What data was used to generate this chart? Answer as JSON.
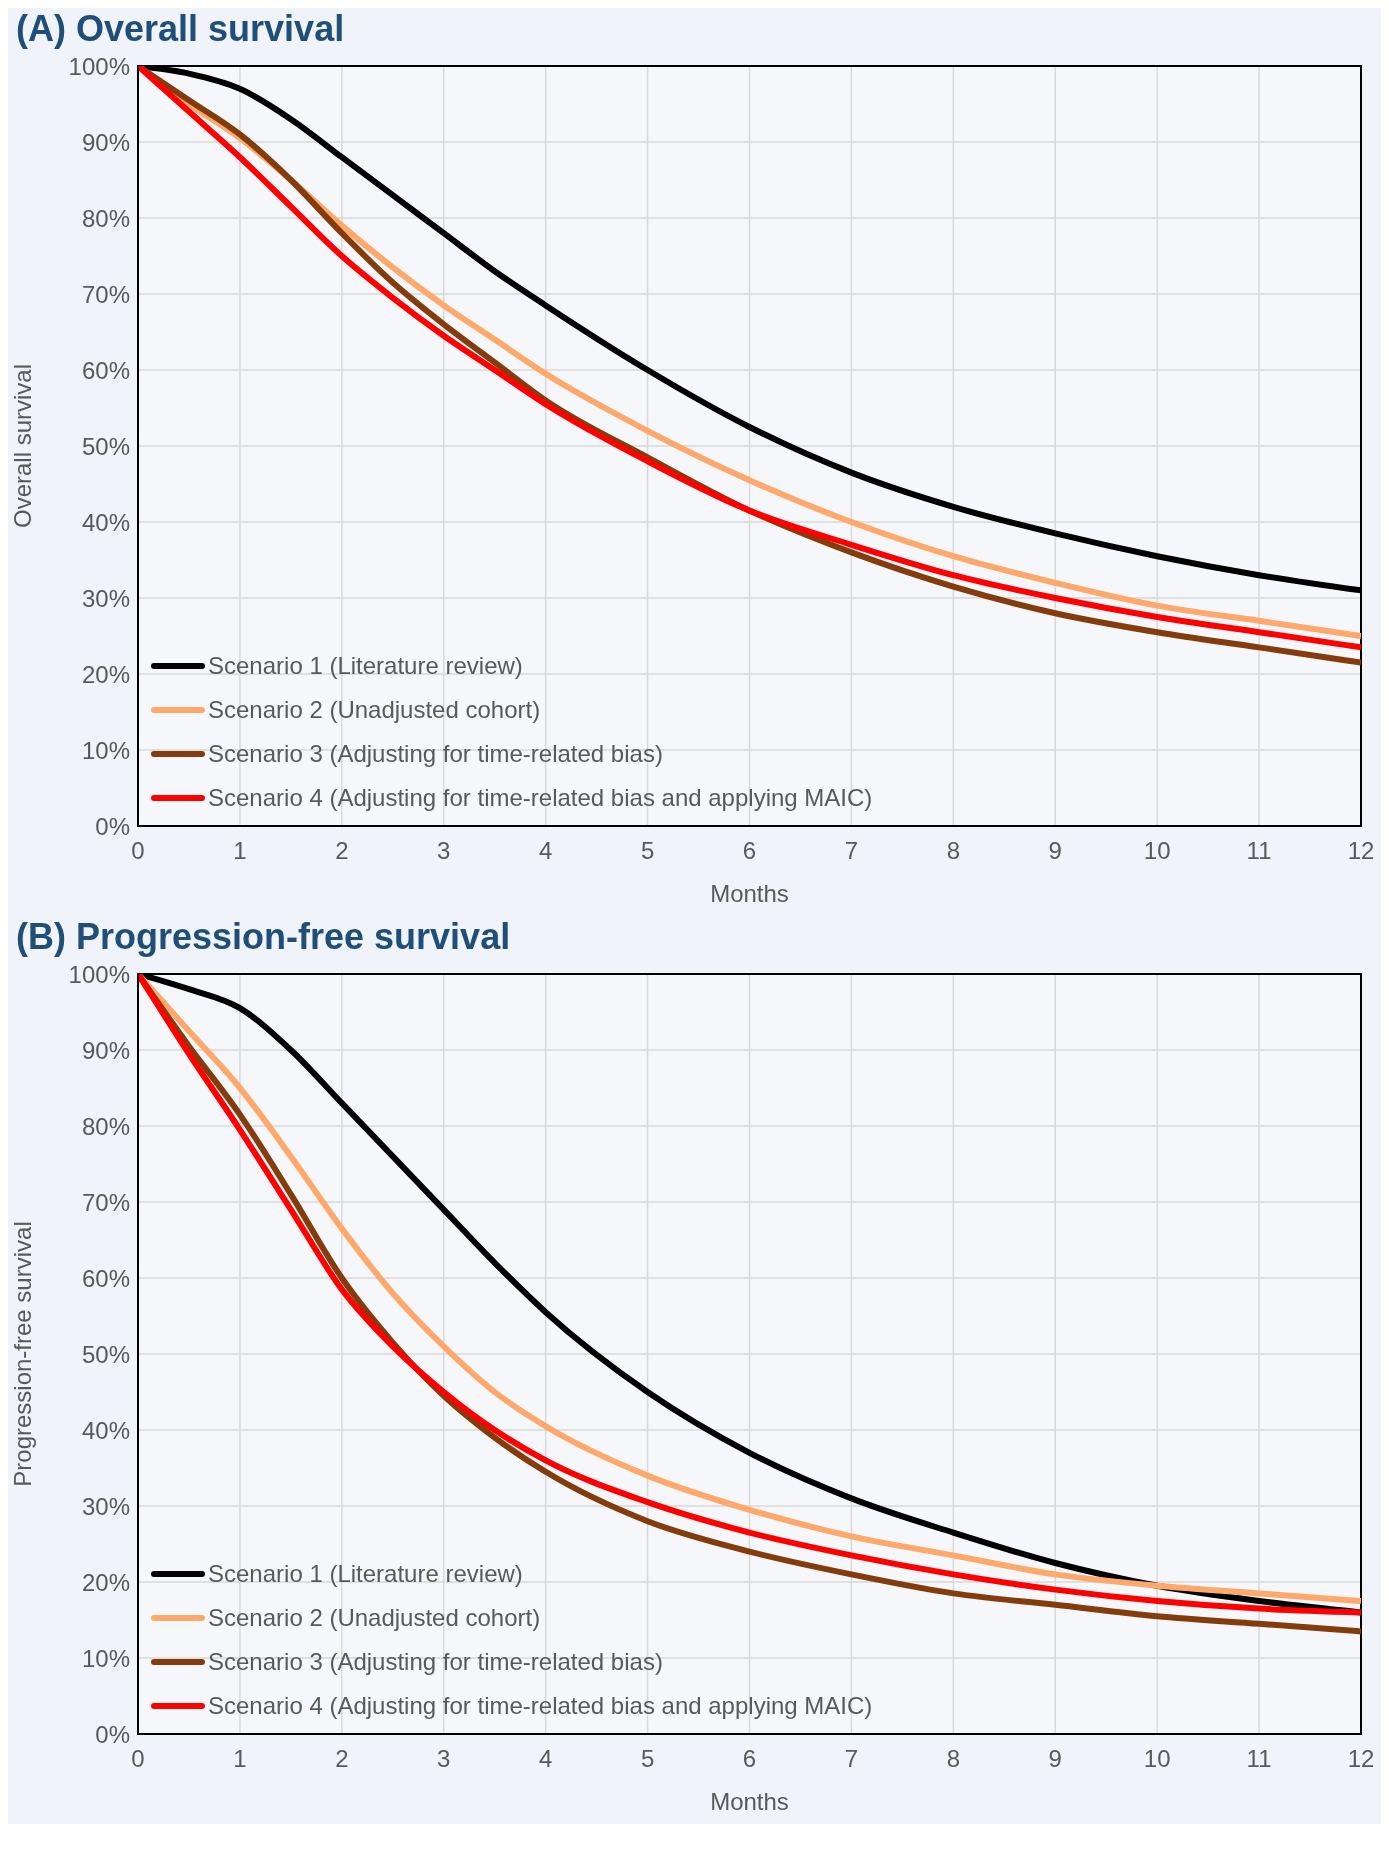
{
  "chart_data": [
    {
      "type": "line",
      "title": "(A) Overall survival",
      "xlabel": "Months",
      "ylabel": "Overall survival",
      "x": [
        0,
        0.5,
        1,
        1.5,
        2,
        2.5,
        3,
        3.5,
        4,
        5,
        6,
        7,
        8,
        9,
        10,
        11,
        12
      ],
      "xlim": [
        0,
        12
      ],
      "xticks": [
        0,
        1,
        2,
        3,
        4,
        5,
        6,
        7,
        8,
        9,
        10,
        11,
        12
      ],
      "ylim": [
        0,
        100
      ],
      "yticks": [
        {
          "value": 0,
          "label": "0%"
        },
        {
          "value": 10,
          "label": "10%"
        },
        {
          "value": 20,
          "label": "20%"
        },
        {
          "value": 30,
          "label": "30%"
        },
        {
          "value": 40,
          "label": "40%"
        },
        {
          "value": 50,
          "label": "50%"
        },
        {
          "value": 60,
          "label": "60%"
        },
        {
          "value": 70,
          "label": "70%"
        },
        {
          "value": 80,
          "label": "80%"
        },
        {
          "value": 90,
          "label": "90%"
        },
        {
          "value": 100,
          "label": "100%"
        }
      ],
      "grid": true,
      "legend": "bottom left",
      "marker": "none",
      "line_style": "solid",
      "series": [
        {
          "name": "Scenario 1 (Literature review)",
          "color": "#000000",
          "values": [
            100,
            99,
            97,
            93,
            88,
            83,
            78,
            73,
            68.5,
            60,
            52.5,
            46.5,
            42,
            38.5,
            35.5,
            33,
            31
          ]
        },
        {
          "name": "Scenario 2 (Unadjusted cohort)",
          "color": "#ffa86b",
          "values": [
            100,
            95,
            90.5,
            85,
            79,
            73.5,
            68.5,
            64,
            59.5,
            52,
            45.5,
            40,
            35.5,
            32,
            29,
            27,
            25
          ]
        },
        {
          "name": "Scenario 3 (Adjusting for time-related bias)",
          "color": "#843c0c",
          "values": [
            100,
            95.5,
            91,
            85,
            78,
            71.5,
            66,
            61,
            56,
            48.5,
            41.5,
            36,
            31.5,
            28,
            25.5,
            23.5,
            21.5
          ]
        },
        {
          "name": "Scenario 4 (Adjusting for time-related bias and applying MAIC)",
          "color": "#ff0000",
          "values": [
            100,
            94,
            88,
            81.5,
            75,
            69.5,
            64.5,
            60,
            55.5,
            48,
            41.5,
            37,
            33,
            30,
            27.5,
            25.5,
            23.5
          ]
        }
      ]
    },
    {
      "type": "line",
      "title": "(B) Progression-free survival",
      "xlabel": "Months",
      "ylabel": "Progression-free survival",
      "x": [
        0,
        0.5,
        1,
        1.5,
        2,
        2.5,
        3,
        3.5,
        4,
        5,
        6,
        7,
        8,
        9,
        10,
        11,
        12
      ],
      "xlim": [
        0,
        12
      ],
      "xticks": [
        0,
        1,
        2,
        3,
        4,
        5,
        6,
        7,
        8,
        9,
        10,
        11,
        12
      ],
      "ylim": [
        0,
        100
      ],
      "yticks": [
        {
          "value": 0,
          "label": "0%"
        },
        {
          "value": 10,
          "label": "10%"
        },
        {
          "value": 20,
          "label": "20%"
        },
        {
          "value": 30,
          "label": "30%"
        },
        {
          "value": 40,
          "label": "40%"
        },
        {
          "value": 50,
          "label": "50%"
        },
        {
          "value": 60,
          "label": "60%"
        },
        {
          "value": 70,
          "label": "70%"
        },
        {
          "value": 80,
          "label": "80%"
        },
        {
          "value": 90,
          "label": "90%"
        },
        {
          "value": 100,
          "label": "100%"
        }
      ],
      "grid": true,
      "legend": "bottom left",
      "marker": "none",
      "line_style": "solid",
      "series": [
        {
          "name": "Scenario 1 (Literature review)",
          "color": "#000000",
          "values": [
            100,
            98,
            95.5,
            90,
            83,
            76,
            69,
            62,
            55.5,
            45,
            37,
            31,
            26.5,
            22.5,
            19.5,
            17.5,
            16
          ]
        },
        {
          "name": "Scenario 2 (Unadjusted cohort)",
          "color": "#ffa86b",
          "values": [
            100,
            92.5,
            85,
            76,
            66.5,
            58,
            51,
            45,
            40.5,
            34,
            29.5,
            26,
            23.5,
            21,
            19.5,
            18.5,
            17.5
          ]
        },
        {
          "name": "Scenario 3 (Adjusting for time-related bias)",
          "color": "#843c0c",
          "values": [
            100,
            90.5,
            81.5,
            71,
            60,
            51.5,
            44.5,
            39,
            34.5,
            28,
            24,
            21,
            18.5,
            17,
            15.5,
            14.5,
            13.5
          ]
        },
        {
          "name": "Scenario 4 (Adjusting for time-related bias and applying MAIC)",
          "color": "#ff0000",
          "values": [
            100,
            89.5,
            79.5,
            69,
            58.5,
            51,
            45,
            40,
            36,
            30.5,
            26.5,
            23.5,
            21,
            19,
            17.5,
            16.5,
            16
          ]
        }
      ]
    }
  ]
}
